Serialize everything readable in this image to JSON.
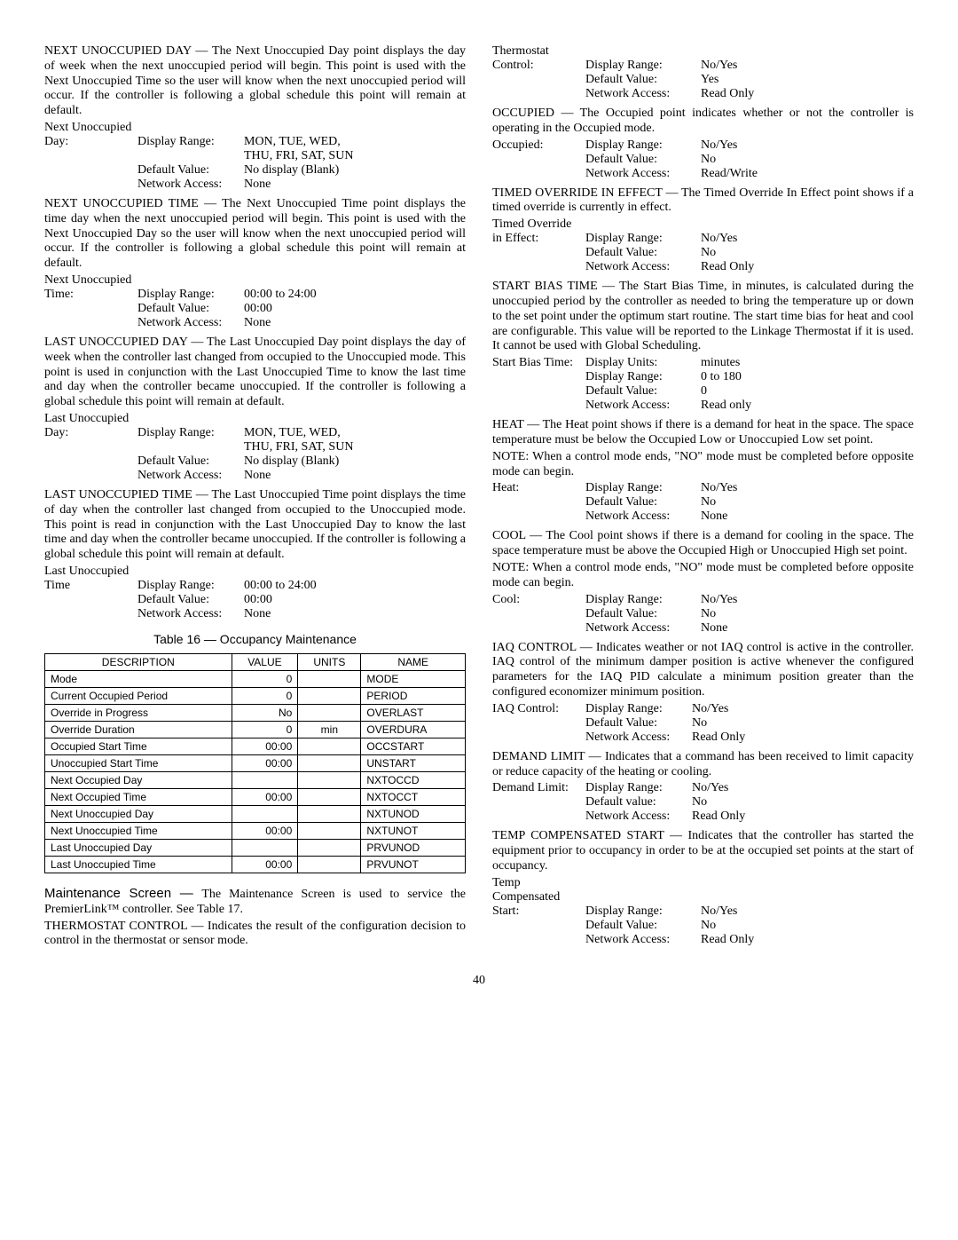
{
  "left": {
    "next_unoccupied_day": {
      "desc": "NEXT UNOCCUPIED DAY — The Next Unoccupied Day point displays the day of week when the next unoccupied period will begin. This point is used with the Next Unoccupied Time so the user will know when the next unoccupied period will occur. If the controller is following a global schedule this point will remain at default.",
      "label": "Next Unoccupied",
      "label2": "Day:",
      "display_range_label": "Display Range:",
      "display_range": "MON, TUE, WED,",
      "display_range2": "THU, FRI, SAT, SUN",
      "default_label": "Default Value:",
      "default": "No display (Blank)",
      "network_label": "Network Access:",
      "network": "None"
    },
    "next_unoccupied_time": {
      "desc": "NEXT UNOCCUPIED TIME — The Next Unoccupied Time point displays the time day when the next unoccupied period will begin. This point is used with the Next Unoccupied Day so the user will know when the next unoccupied period will occur. If the controller is following a global schedule this point will remain at default.",
      "label": "Next Unoccupied",
      "label2": "Time:",
      "display_range_label": "Display Range:",
      "display_range": "00:00 to 24:00",
      "default_label": "Default Value:",
      "default": "00:00",
      "network_label": "Network Access:",
      "network": "None"
    },
    "last_unoccupied_day": {
      "desc": "LAST UNOCCUPIED DAY — The Last Unoccupied Day point displays the day of week when the controller last changed from occupied to the Unoccupied mode. This point is used in conjunction with the Last Unoccupied Time to know the last time and day when the controller became unoccupied. If the controller is following a global schedule this point will remain at default.",
      "label": "Last Unoccupied",
      "label2": "Day:",
      "display_range_label": "Display Range:",
      "display_range": "MON, TUE, WED,",
      "display_range2": "THU, FRI, SAT, SUN",
      "default_label": "Default Value:",
      "default": "No display (Blank)",
      "network_label": "Network Access:",
      "network": "None"
    },
    "last_unoccupied_time": {
      "desc": "LAST UNOCCUPIED TIME — The Last Unoccupied Time point displays the time of day when the controller last changed from occupied to the Unoccupied mode. This point is read in conjunction with the Last Unoccupied Day to know the last time and day when the controller became unoccupied. If the controller is following a global schedule this point will remain at default.",
      "label": "Last Unoccupied",
      "label2": "Time",
      "display_range_label": "Display Range:",
      "display_range": "00:00 to 24:00",
      "default_label": "Default Value:",
      "default": "00:00",
      "network_label": "Network Access:",
      "network": "None"
    },
    "table_title": "Table 16 — Occupancy Maintenance",
    "table": {
      "headers": [
        "DESCRIPTION",
        "VALUE",
        "UNITS",
        "NAME"
      ],
      "rows": [
        [
          "Mode",
          "0",
          "",
          "MODE"
        ],
        [
          "Current Occupied Period",
          "0",
          "",
          "PERIOD"
        ],
        [
          "Override in Progress",
          "No",
          "",
          "OVERLAST"
        ],
        [
          "Override Duration",
          "0",
          "min",
          "OVERDURA"
        ],
        [
          "Occupied Start Time",
          "00:00",
          "",
          "OCCSTART"
        ],
        [
          "Unoccupied Start Time",
          "00:00",
          "",
          "UNSTART"
        ],
        [
          "Next Occupied Day",
          "",
          "",
          "NXTOCCD"
        ],
        [
          "Next Occupied Time",
          "00:00",
          "",
          "NXTOCCT"
        ],
        [
          "Next Unoccupied Day",
          "",
          "",
          "NXTUNOD"
        ],
        [
          "Next Unoccupied Time",
          "00:00",
          "",
          "NXTUNOT"
        ],
        [
          "Last Unoccupied Day",
          "",
          "",
          "PRVUNOD"
        ],
        [
          "Last Unoccupied Time",
          "00:00",
          "",
          "PRVUNOT"
        ]
      ]
    },
    "maintenance_heading": "Maintenance Screen  — ",
    "maintenance_body": "The Maintenance Screen is used to service the PremierLink™ controller. See Table 17.",
    "thermostat_control": "THERMOSTAT CONTROL — Indicates the result of the configuration decision to control in the thermostat or sensor mode."
  },
  "right": {
    "thermostat": {
      "label": "Thermostat",
      "label2": "Control:",
      "display_range_label": "Display Range:",
      "display_range": "No/Yes",
      "default_label": "Default Value:",
      "default": "Yes",
      "network_label": "Network Access:",
      "network": "Read Only"
    },
    "occupied": {
      "desc": "OCCUPIED — The Occupied point indicates whether or not the controller is operating in the Occupied mode.",
      "label2": "Occupied:",
      "display_range_label": "Display Range:",
      "display_range": "No/Yes",
      "default_label": "Default Value:",
      "default": "No",
      "network_label": "Network Access:",
      "network": "Read/Write"
    },
    "timed_override": {
      "desc": "TIMED OVERRIDE IN EFFECT — The Timed Override In Effect point shows if a timed override is currently in effect.",
      "label": "Timed Override",
      "label2": "in Effect:",
      "display_range_label": "Display Range:",
      "display_range": "No/Yes",
      "default_label": "Default Value:",
      "default": "No",
      "network_label": "Network Access:",
      "network": "Read Only"
    },
    "start_bias": {
      "desc": "START BIAS TIME — The Start Bias Time, in minutes, is calculated during the unoccupied period by the controller as needed to bring the temperature up or down to the set point under the optimum start routine. The start time bias for heat and cool are configurable. This value will be reported to the Linkage Thermostat if it is used. It cannot be used with Global Scheduling.",
      "label2": "Start Bias Time:",
      "units_label": "Display Units:",
      "units": "minutes",
      "display_range_label": "Display Range:",
      "display_range": "0 to 180",
      "default_label": "Default Value:",
      "default": "0",
      "network_label": "Network Access:",
      "network": "Read only"
    },
    "heat": {
      "desc": "HEAT — The Heat point shows if there is a demand for heat in the space. The space temperature must be below the Occupied Low or Unoccupied Low set point.",
      "note": "NOTE: When a control mode ends, \"NO\" mode must be completed before opposite mode can begin.",
      "label2": "Heat:",
      "display_range_label": "Display Range:",
      "display_range": "No/Yes",
      "default_label": "Default Value:",
      "default": "No",
      "network_label": "Network Access:",
      "network": "None"
    },
    "cool": {
      "desc": "COOL — The Cool point shows if there is a demand for cooling in the space. The space temperature must be above the Occupied High or Unoccupied High set point.",
      "note": "NOTE: When a control mode ends, \"NO\" mode must be completed before opposite mode can begin.",
      "label2": "Cool:",
      "display_range_label": "Display Range:",
      "display_range": "No/Yes",
      "default_label": "Default Value:",
      "default": "No",
      "network_label": "Network Access:",
      "network": "None"
    },
    "iaq": {
      "desc": "IAQ CONTROL — Indicates weather or not IAQ control is active in the controller. IAQ control of the minimum damper position is active whenever the configured parameters for the IAQ PID calculate a minimum position greater than the configured economizer minimum position.",
      "label2": "IAQ Control:",
      "display_range_label": "Display Range:",
      "display_range": "No/Yes",
      "default_label": "Default Value:",
      "default": "No",
      "network_label": "Network Access:",
      "network": "Read Only"
    },
    "demand": {
      "desc": "DEMAND LIMIT — Indicates that a command has been received to limit capacity or reduce capacity of the heating or cooling.",
      "label2": "Demand Limit:",
      "display_range_label": "Display Range:",
      "display_range": "No/Yes",
      "default_label": "Default value:",
      "default": "No",
      "network_label": "Network Access:",
      "network": "Read Only"
    },
    "temp_comp": {
      "desc": "TEMP COMPENSATED START — Indicates that the controller has started the equipment prior to occupancy in order to be at the occupied set points at the start of occupancy.",
      "label": "Temp",
      "label1b": "Compensated",
      "label2": "Start:",
      "display_range_label": "Display Range:",
      "display_range": "No/Yes",
      "default_label": "Default Value:",
      "default": "No",
      "network_label": "Network Access:",
      "network": "Read Only"
    }
  },
  "page_number": "40"
}
